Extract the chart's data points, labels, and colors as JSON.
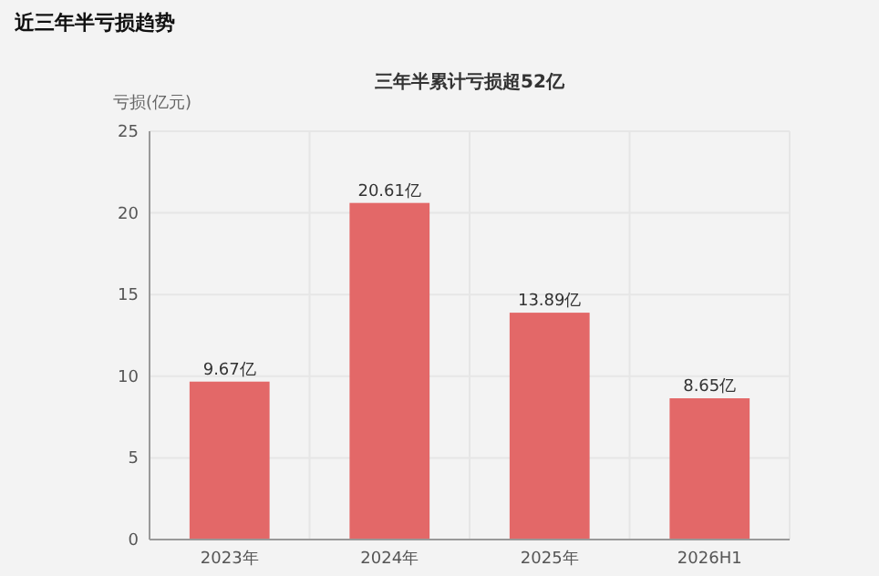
{
  "chart_data": {
    "type": "bar",
    "title": "近三年半亏损趋势",
    "subtitle": "三年半累计亏损超52亿",
    "ylabel": "亏损(亿元)",
    "categories": [
      "2023年",
      "2024年",
      "2025年",
      "2026H1"
    ],
    "values": [
      9.67,
      20.61,
      13.89,
      8.65
    ],
    "value_labels": [
      "9.67亿",
      "20.61亿",
      "13.89亿",
      "8.65亿"
    ],
    "color": "#e36868",
    "ylim": [
      0,
      25
    ],
    "yticks": [
      0,
      5,
      10,
      15,
      20,
      25
    ],
    "grid": true
  }
}
